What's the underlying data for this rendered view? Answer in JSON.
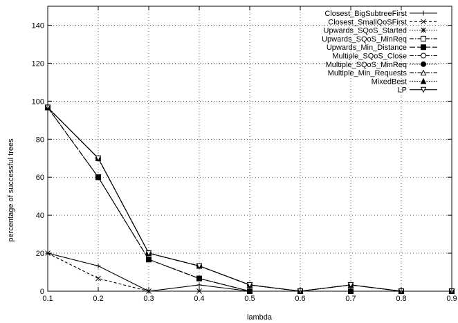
{
  "chart_data": {
    "type": "line",
    "xlabel": "lambda",
    "ylabel": "percentage of successful trees",
    "xlim": [
      0.1,
      0.9
    ],
    "ylim": [
      0,
      150
    ],
    "x_ticks": [
      "0.1",
      "0.2",
      "0.3",
      "0.4",
      "0.5",
      "0.6",
      "0.7",
      "0.8",
      "0.9"
    ],
    "y_ticks": [
      "0",
      "20",
      "40",
      "60",
      "80",
      "100",
      "120",
      "140"
    ],
    "grid": "dotted",
    "legend_position": "top-right",
    "x": [
      0.1,
      0.2,
      0.3,
      0.4,
      0.5,
      0.6,
      0.7,
      0.8,
      0.9
    ],
    "series": [
      {
        "name": "Closest_BigSubtreeFirst",
        "marker": "plus",
        "dash": "solid",
        "values": [
          20,
          13.3,
          0,
          3.3,
          0,
          0,
          0,
          0,
          0
        ]
      },
      {
        "name": "Closest_SmallQoSFirst",
        "marker": "cross",
        "dash": "dashed",
        "values": [
          20,
          6.7,
          0,
          0,
          0,
          0,
          0,
          0,
          0
        ]
      },
      {
        "name": "Upwards_SQoS_Started",
        "marker": "star",
        "dash": "dotted",
        "values": [
          96.7,
          60,
          16.7,
          6.7,
          0,
          0,
          0,
          0,
          0
        ]
      },
      {
        "name": "Upwards_SQoS_MinReq",
        "marker": "open-square",
        "dash": "dash-dot",
        "values": [
          96.7,
          60,
          16.7,
          6.7,
          0,
          0,
          0,
          0,
          0
        ]
      },
      {
        "name": "Upwards_Min_Distance",
        "marker": "filled-square",
        "dash": "long-dash",
        "values": [
          96.7,
          60,
          16.7,
          6.7,
          0,
          0,
          0,
          0,
          0
        ]
      },
      {
        "name": "Multiple_SQoS_Close",
        "marker": "open-circle",
        "dash": "dash-dot",
        "values": [
          96.7,
          70,
          20,
          13.3,
          3.3,
          0,
          3.3,
          0,
          0
        ]
      },
      {
        "name": "Multiple_SQoS_MinReq",
        "marker": "filled-circle",
        "dash": "dotted",
        "values": [
          96.7,
          70,
          20,
          13.3,
          3.3,
          0,
          3.3,
          0,
          0
        ]
      },
      {
        "name": "Multiple_Min_Requests",
        "marker": "open-triangle",
        "dash": "dash-dot",
        "values": [
          96.7,
          70,
          20,
          13.3,
          3.3,
          0,
          3.3,
          0,
          0
        ]
      },
      {
        "name": "MixedBest",
        "marker": "filled-triangle",
        "dash": "dotted",
        "values": [
          96.7,
          70,
          20,
          13.3,
          3.3,
          0,
          3.3,
          0,
          0
        ]
      },
      {
        "name": "LP",
        "marker": "open-triangle-down",
        "dash": "solid",
        "values": [
          96.7,
          70,
          20,
          13.3,
          3.3,
          0,
          3.3,
          0,
          0
        ]
      }
    ]
  }
}
